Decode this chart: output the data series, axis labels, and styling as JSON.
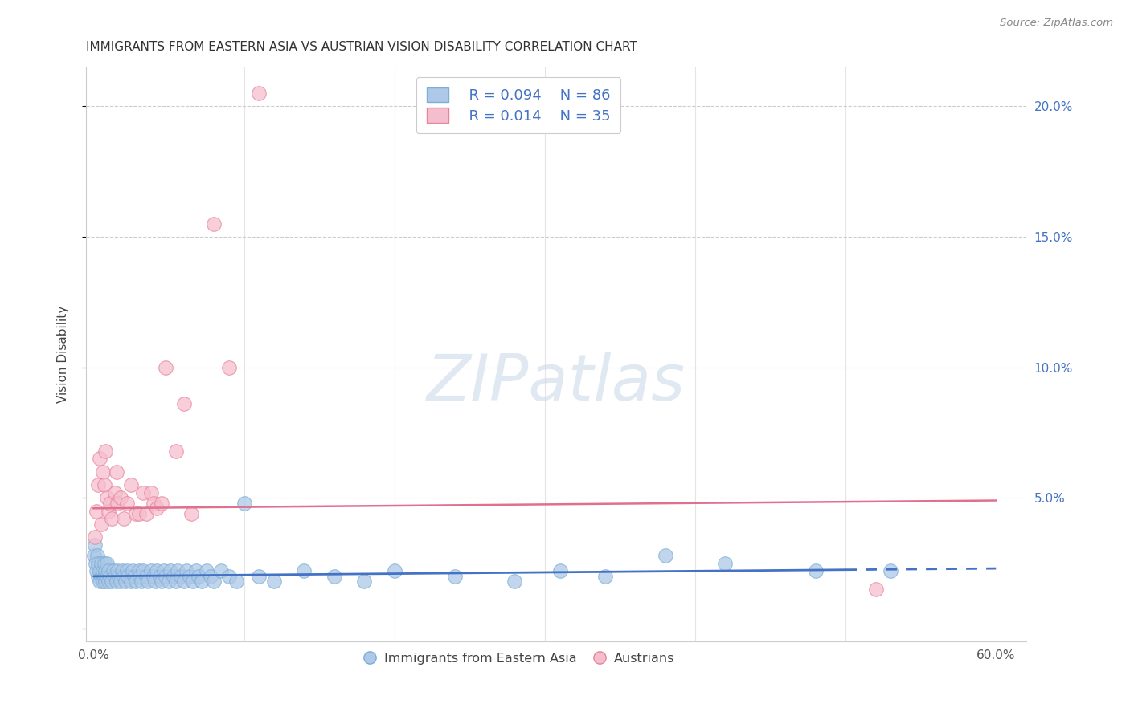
{
  "title": "IMMIGRANTS FROM EASTERN ASIA VS AUSTRIAN VISION DISABILITY CORRELATION CHART",
  "source": "Source: ZipAtlas.com",
  "ylabel": "Vision Disability",
  "xlim": [
    -0.005,
    0.62
  ],
  "ylim": [
    -0.005,
    0.215
  ],
  "xticks": [
    0.0,
    0.1,
    0.2,
    0.3,
    0.4,
    0.5,
    0.6
  ],
  "xticklabels": [
    "0.0%",
    "",
    "",
    "",
    "",
    "",
    "60.0%"
  ],
  "yticks_right": [
    0.05,
    0.1,
    0.15,
    0.2
  ],
  "yticklabels_right": [
    "5.0%",
    "10.0%",
    "15.0%",
    "20.0%"
  ],
  "blue_color": "#adc8e8",
  "blue_edge": "#7bafd4",
  "pink_color": "#f5bece",
  "pink_edge": "#e8849a",
  "trend_blue": "#4472c4",
  "trend_pink": "#e07090",
  "watermark": "ZIPatlas",
  "legend_r_blue": "R = 0.094",
  "legend_n_blue": "N = 86",
  "legend_r_pink": "R = 0.014",
  "legend_n_pink": "N = 35",
  "blue_trend_start_y": 0.02,
  "blue_trend_end_y": 0.023,
  "blue_trend_solid_end": 0.5,
  "pink_trend_start_y": 0.046,
  "pink_trend_end_y": 0.049,
  "blue_x": [
    0.0005,
    0.001,
    0.0015,
    0.002,
    0.0025,
    0.003,
    0.003,
    0.004,
    0.004,
    0.005,
    0.005,
    0.006,
    0.006,
    0.007,
    0.007,
    0.008,
    0.008,
    0.009,
    0.009,
    0.01,
    0.01,
    0.011,
    0.012,
    0.013,
    0.014,
    0.015,
    0.016,
    0.017,
    0.018,
    0.019,
    0.02,
    0.021,
    0.022,
    0.023,
    0.025,
    0.026,
    0.027,
    0.028,
    0.03,
    0.031,
    0.032,
    0.033,
    0.035,
    0.036,
    0.038,
    0.04,
    0.041,
    0.042,
    0.044,
    0.045,
    0.047,
    0.048,
    0.05,
    0.051,
    0.053,
    0.055,
    0.056,
    0.058,
    0.06,
    0.062,
    0.064,
    0.066,
    0.068,
    0.07,
    0.072,
    0.075,
    0.078,
    0.08,
    0.085,
    0.09,
    0.095,
    0.1,
    0.11,
    0.12,
    0.14,
    0.16,
    0.18,
    0.2,
    0.24,
    0.28,
    0.31,
    0.34,
    0.38,
    0.42,
    0.48,
    0.53
  ],
  "blue_y": [
    0.028,
    0.032,
    0.025,
    0.022,
    0.028,
    0.02,
    0.025,
    0.018,
    0.022,
    0.025,
    0.02,
    0.022,
    0.018,
    0.025,
    0.02,
    0.022,
    0.018,
    0.02,
    0.025,
    0.018,
    0.022,
    0.02,
    0.018,
    0.022,
    0.02,
    0.018,
    0.022,
    0.02,
    0.018,
    0.022,
    0.02,
    0.018,
    0.022,
    0.02,
    0.018,
    0.022,
    0.02,
    0.018,
    0.022,
    0.02,
    0.018,
    0.022,
    0.02,
    0.018,
    0.022,
    0.02,
    0.018,
    0.022,
    0.02,
    0.018,
    0.022,
    0.02,
    0.018,
    0.022,
    0.02,
    0.018,
    0.022,
    0.02,
    0.018,
    0.022,
    0.02,
    0.018,
    0.022,
    0.02,
    0.018,
    0.022,
    0.02,
    0.018,
    0.022,
    0.02,
    0.018,
    0.048,
    0.02,
    0.018,
    0.022,
    0.02,
    0.018,
    0.022,
    0.02,
    0.018,
    0.022,
    0.02,
    0.028,
    0.025,
    0.022,
    0.022
  ],
  "pink_x": [
    0.001,
    0.002,
    0.003,
    0.004,
    0.005,
    0.006,
    0.007,
    0.008,
    0.009,
    0.01,
    0.011,
    0.012,
    0.014,
    0.015,
    0.016,
    0.018,
    0.02,
    0.022,
    0.025,
    0.028,
    0.03,
    0.033,
    0.035,
    0.038,
    0.04,
    0.042,
    0.045,
    0.048,
    0.055,
    0.06,
    0.065,
    0.08,
    0.09,
    0.11,
    0.52
  ],
  "pink_y": [
    0.035,
    0.045,
    0.055,
    0.065,
    0.04,
    0.06,
    0.055,
    0.068,
    0.05,
    0.045,
    0.048,
    0.042,
    0.052,
    0.06,
    0.048,
    0.05,
    0.042,
    0.048,
    0.055,
    0.044,
    0.044,
    0.052,
    0.044,
    0.052,
    0.048,
    0.046,
    0.048,
    0.1,
    0.068,
    0.086,
    0.044,
    0.155,
    0.1,
    0.205,
    0.015
  ]
}
